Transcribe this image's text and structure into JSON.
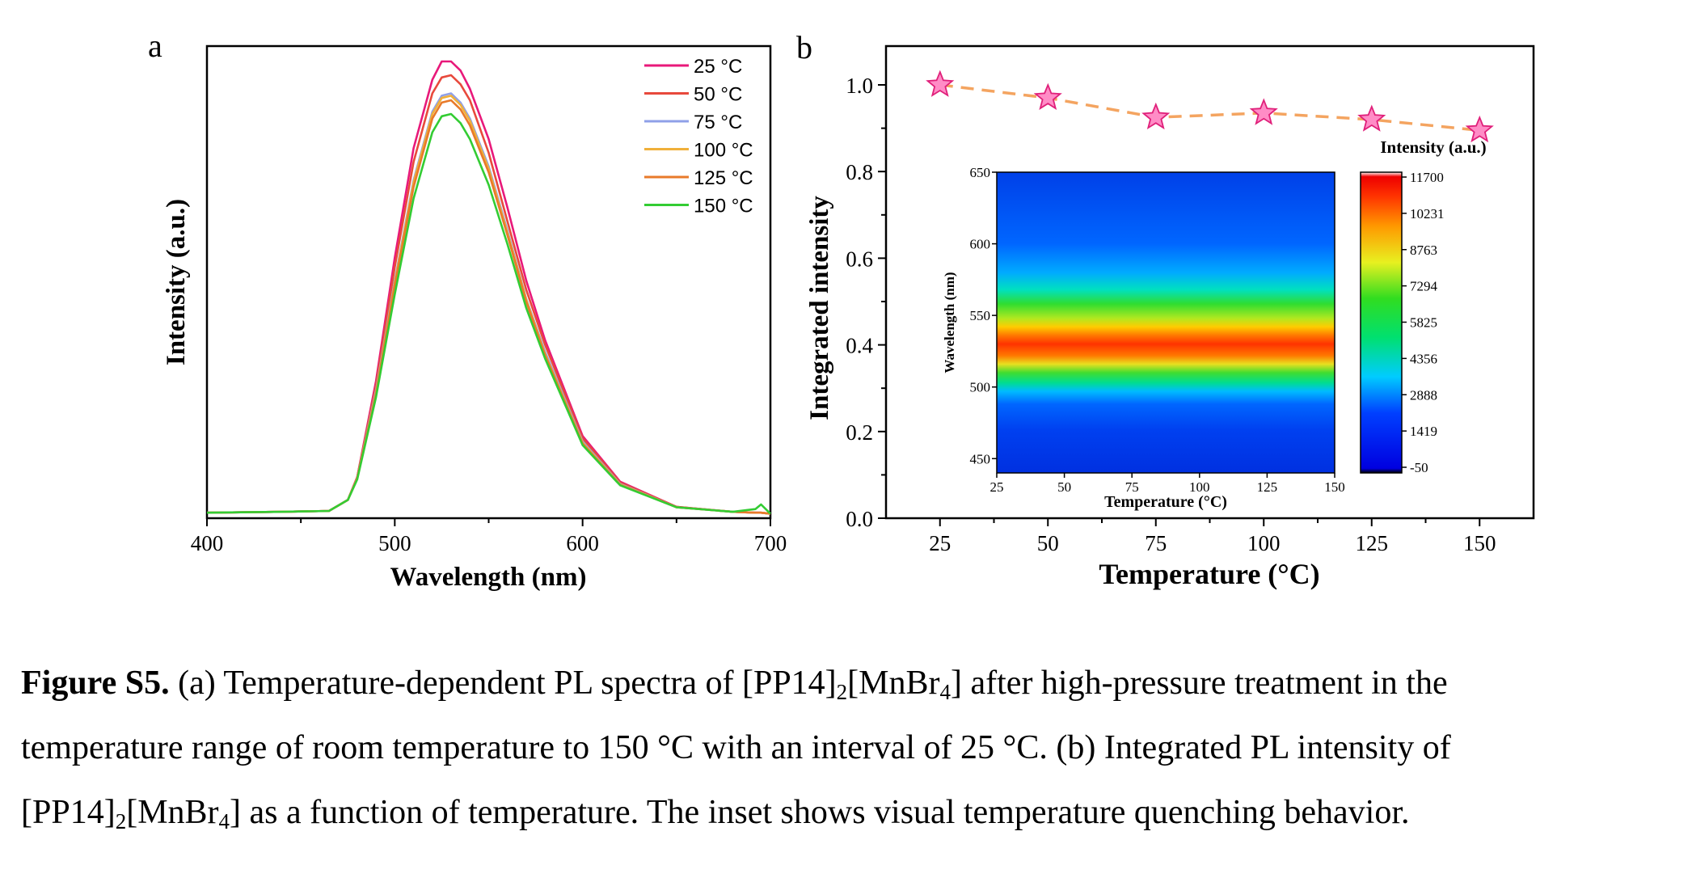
{
  "chart_data": [
    {
      "type": "line",
      "panel_label": "a",
      "xlabel": "Wavelength (nm)",
      "ylabel": "Intensity (a.u.)",
      "xlim": [
        400,
        700
      ],
      "x_ticks": [
        "400",
        "500",
        "600",
        "700"
      ],
      "legend_position": "top-right",
      "x": [
        400,
        440,
        465,
        475,
        480,
        490,
        500,
        510,
        520,
        525,
        530,
        535,
        540,
        550,
        560,
        570,
        580,
        600,
        620,
        650,
        680,
        692,
        695,
        700
      ],
      "series": [
        {
          "name": "25 °C",
          "color": "#e8197a",
          "values": [
            0.012,
            0.014,
            0.016,
            0.04,
            0.09,
            0.3,
            0.57,
            0.81,
            0.96,
            1.0,
            1.0,
            0.98,
            0.94,
            0.83,
            0.68,
            0.52,
            0.39,
            0.18,
            0.08,
            0.025,
            0.014,
            0.012,
            0.012,
            0.01
          ]
        },
        {
          "name": "50 °C",
          "color": "#e8493c",
          "values": [
            0.012,
            0.014,
            0.016,
            0.04,
            0.09,
            0.29,
            0.55,
            0.78,
            0.93,
            0.965,
            0.97,
            0.95,
            0.915,
            0.8,
            0.65,
            0.5,
            0.38,
            0.175,
            0.078,
            0.025,
            0.014,
            0.012,
            0.012,
            0.01
          ]
        },
        {
          "name": "75 °C",
          "color": "#8fa0e8",
          "values": [
            0.012,
            0.014,
            0.016,
            0.04,
            0.088,
            0.28,
            0.52,
            0.74,
            0.89,
            0.925,
            0.93,
            0.91,
            0.875,
            0.77,
            0.63,
            0.48,
            0.365,
            0.168,
            0.075,
            0.024,
            0.014,
            0.012,
            0.012,
            0.01
          ]
        },
        {
          "name": "100 °C",
          "color": "#f0b03a",
          "values": [
            0.012,
            0.014,
            0.016,
            0.04,
            0.087,
            0.275,
            0.515,
            0.735,
            0.885,
            0.92,
            0.925,
            0.905,
            0.87,
            0.765,
            0.625,
            0.478,
            0.36,
            0.165,
            0.074,
            0.024,
            0.014,
            0.012,
            0.012,
            0.01
          ]
        },
        {
          "name": "125 °C",
          "color": "#e87a2a",
          "values": [
            0.012,
            0.014,
            0.016,
            0.04,
            0.087,
            0.272,
            0.51,
            0.725,
            0.875,
            0.91,
            0.915,
            0.895,
            0.86,
            0.757,
            0.62,
            0.474,
            0.357,
            0.163,
            0.073,
            0.024,
            0.014,
            0.012,
            0.012,
            0.01
          ]
        },
        {
          "name": "150 °C",
          "color": "#33cc33",
          "values": [
            0.012,
            0.014,
            0.016,
            0.04,
            0.085,
            0.265,
            0.49,
            0.7,
            0.845,
            0.88,
            0.885,
            0.865,
            0.83,
            0.73,
            0.6,
            0.46,
            0.35,
            0.16,
            0.072,
            0.024,
            0.014,
            0.02,
            0.03,
            0.01
          ]
        }
      ]
    },
    {
      "type": "line",
      "panel_label": "b",
      "xlabel": "Temperature (°C)",
      "ylabel": "Integrated intensity",
      "xlim": [
        12.5,
        162.5
      ],
      "ylim": [
        0,
        1.1
      ],
      "x_ticks": [
        "25",
        "50",
        "75",
        "100",
        "125",
        "150"
      ],
      "y_ticks": [
        "0.0",
        "0.2",
        "0.4",
        "0.6",
        "0.8",
        "1.0"
      ],
      "x": [
        25,
        50,
        75,
        100,
        125,
        150
      ],
      "series": [
        {
          "values": [
            1.0,
            0.97,
            0.925,
            0.935,
            0.92,
            0.895
          ],
          "line_color": "#f4a460",
          "marker": "star",
          "marker_color": "#ff8cc6"
        }
      ],
      "inset": {
        "type": "heatmap",
        "xlabel": "Temperature (°C)",
        "ylabel": "Wavelength (nm)",
        "xlim": [
          25,
          150
        ],
        "ylim": [
          440,
          650
        ],
        "x_ticks": [
          "25",
          "50",
          "75",
          "100",
          "125",
          "150"
        ],
        "y_ticks": [
          "450",
          "500",
          "550",
          "600",
          "650"
        ],
        "colorbar_title": "Intensity (a.u.)",
        "colorbar_ticks": [
          "11700",
          "10231",
          "8763",
          "7294",
          "5825",
          "4356",
          "2888",
          "1419",
          "-50"
        ],
        "colorbar_range": [
          -50,
          11700
        ],
        "peak_wavelength": 530
      }
    }
  ],
  "caption": {
    "label": "Figure S5.",
    "line1_pre": " (a) Temperature-dependent PL spectra of [PP14]",
    "sub1": "2",
    "line1_mid": "[MnBr",
    "sub2": "4",
    "line1_post": "] after high-pressure treatment in the",
    "line2": "temperature range of room temperature to 150 °C with an interval of 25 °C. (b) Integrated PL intensity of",
    "line3_pre": "[PP14]",
    "sub3": "2",
    "line3_mid": "[MnBr",
    "sub4": "4",
    "line3_post": "] as a function of temperature. The inset shows visual temperature quenching behavior."
  }
}
